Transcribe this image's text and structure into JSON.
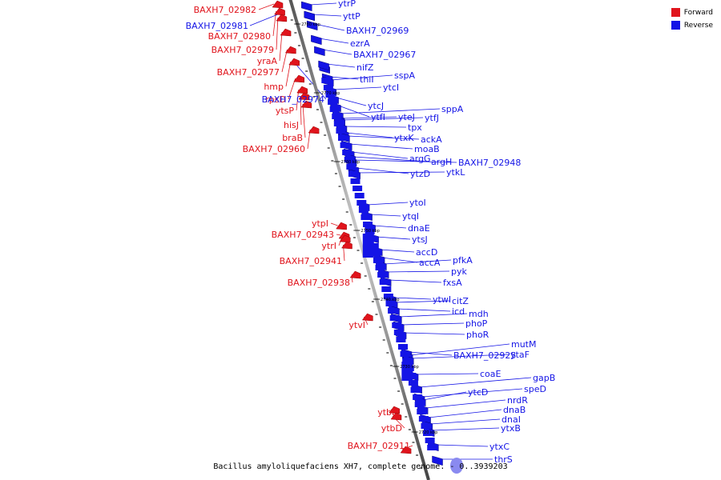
{
  "legend": {
    "forward": "Forward",
    "reverse": "Reverse",
    "forward_color": "#e0141c",
    "reverse_color": "#1414e6"
  },
  "caption": "Bacillus amyloliquefaciens XH7, complete genome. - 0..3939203",
  "ticks": [
    "2780 kbp",
    "2770 kbp",
    "2760 kbp",
    "2750 kbp",
    "2740 kbp",
    "2730 kbp",
    "2720 kbp"
  ],
  "forward_genes": [
    "BAXH7_02982",
    "BAXH7_02980",
    "BAXH7_02979",
    "yraA",
    "BAXH7_02977",
    "hmp",
    "rpsD",
    "ytsP",
    "hisJ",
    "braB",
    "BAXH7_02960",
    "ytpI",
    "BAXH7_02943",
    "ytrI",
    "BAXH7_02941",
    "BAXH7_02938",
    "ytvI",
    "ytbE",
    "ytbD",
    "BAXH7_02911"
  ],
  "reverse_genes": [
    "BAXH7_02981",
    "BAXH7_02974",
    "ytrP",
    "yttP",
    "BAXH7_02969",
    "ezrA",
    "BAXH7_02967",
    "nifZ",
    "thiI",
    "sspA",
    "ytcI",
    "ytcJ",
    "ytfI",
    "sppA",
    "yteJ",
    "ytfJ",
    "tpx",
    "ytxK",
    "ackA",
    "moaB",
    "argG",
    "argH",
    "BAXH7_02948",
    "ytzD",
    "ytkL",
    "ytoI",
    "ytqI",
    "dnaE",
    "ytsJ",
    "accD",
    "accA",
    "pfkA",
    "pyk",
    "fxsA",
    "ytwI",
    "citZ",
    "icd",
    "mdh",
    "phoP",
    "phoR",
    "BAXH7_02925",
    "mutM",
    "ytaF",
    "coaE",
    "gapB",
    "speD",
    "ytcD",
    "nrdR",
    "dnaB",
    "dnaI",
    "ytxB",
    "ytxC",
    "thrS"
  ]
}
